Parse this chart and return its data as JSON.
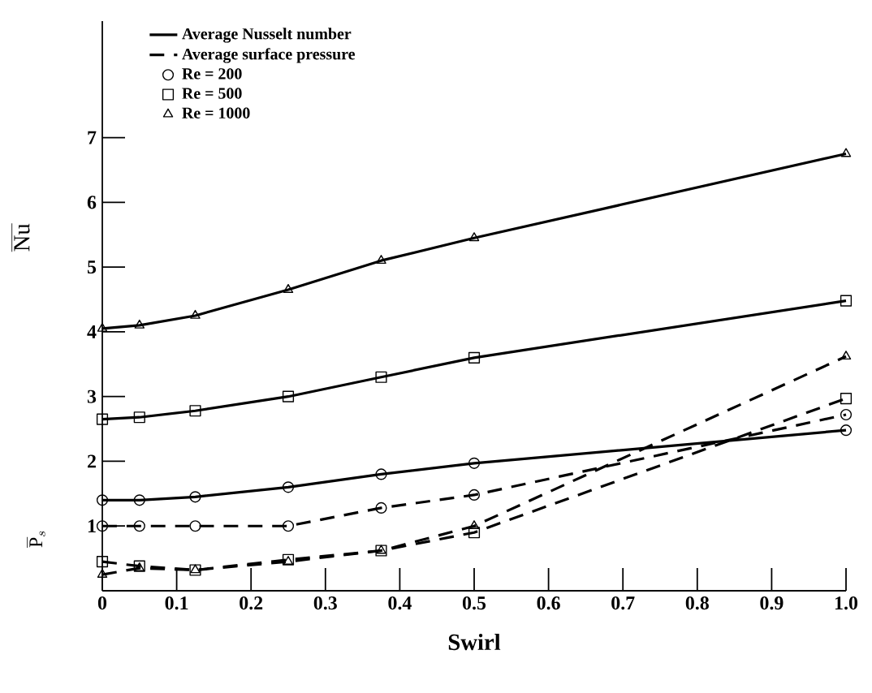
{
  "chart_data": {
    "type": "line",
    "xlabel": "Swirl",
    "ylabel": "\\overline{\\mathrm{Nu}}",
    "annotations": [
      "\\overline{\\mathrm{P}}_{s}"
    ],
    "x": [
      0,
      0.05,
      0.125,
      0.25,
      0.375,
      0.5,
      1.0
    ],
    "xlim": [
      0,
      1.0
    ],
    "ylim": [
      0,
      8.8
    ],
    "xticks": [
      0,
      0.1,
      0.2,
      0.3,
      0.4,
      0.5,
      0.6,
      0.7,
      0.8,
      0.9,
      {
        "value": 1.0,
        "label": "1.0"
      }
    ],
    "yticks": [
      1,
      2,
      3,
      4,
      5,
      6,
      7
    ],
    "grid": false,
    "legend": "top left",
    "series": [
      {
        "name": "Average Nusselt number",
        "color": "#000000",
        "line_style": "solid",
        "marker": "none",
        "values": [
          null,
          null,
          null,
          null,
          null,
          null,
          null
        ]
      },
      {
        "name": "Average surface pressure",
        "color": "#000000",
        "line_style": "dashed",
        "marker": "none",
        "values": [
          null,
          null,
          null,
          null,
          null,
          null,
          null
        ]
      },
      {
        "name": "Re = 200",
        "color": "#000000",
        "line_style": "solid",
        "marker": "circle",
        "values": [
          1.4,
          1.4,
          1.45,
          1.6,
          1.8,
          1.97,
          2.48
        ]
      },
      {
        "name": "Re = 500",
        "color": "#000000",
        "line_style": "solid",
        "marker": "square",
        "values": [
          2.65,
          2.68,
          2.78,
          3.0,
          3.3,
          3.6,
          4.48
        ]
      },
      {
        "name": "Re = 1000",
        "color": "#000000",
        "line_style": "solid",
        "marker": "triangle",
        "values": [
          4.05,
          4.1,
          4.25,
          4.65,
          5.1,
          5.45,
          6.75
        ]
      },
      {
        "color": "#000000",
        "line_style": "dashed",
        "marker": "circle",
        "values": [
          1.0,
          1.0,
          1.0,
          1.0,
          1.28,
          1.48,
          2.72
        ]
      },
      {
        "color": "#000000",
        "line_style": "dashed",
        "marker": "square",
        "values": [
          0.45,
          0.38,
          0.32,
          0.48,
          0.62,
          0.9,
          2.97
        ]
      },
      {
        "color": "#000000",
        "line_style": "dashed",
        "marker": "triangle",
        "values": [
          0.25,
          0.35,
          0.32,
          0.45,
          0.62,
          1.0,
          3.62
        ]
      }
    ]
  }
}
